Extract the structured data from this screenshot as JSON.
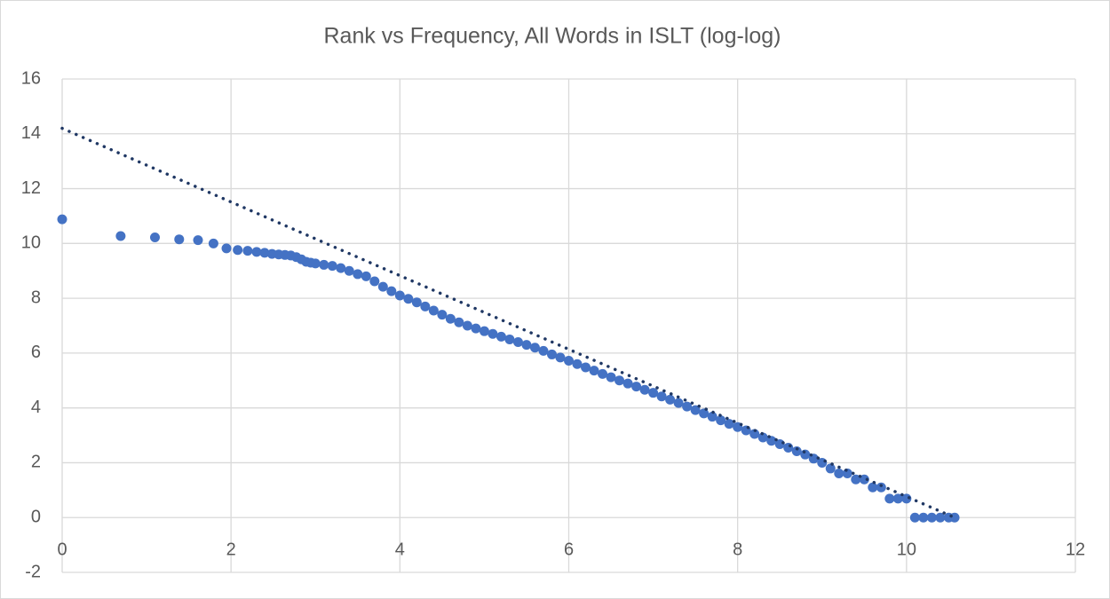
{
  "chart_data": {
    "type": "scatter",
    "title": "Rank vs Frequency, All Words in ISLT (log-log)",
    "series": [
      {
        "color": "#4472c4",
        "x": [
          0,
          0.693,
          1.099,
          1.386,
          1.609,
          1.792,
          1.946,
          2.079,
          2.197,
          2.303,
          2.398,
          2.485,
          2.565,
          2.639,
          2.708,
          2.773,
          2.833,
          2.89,
          2.944,
          3.0,
          3.1,
          3.2,
          3.3,
          3.4,
          3.5,
          3.6,
          3.7,
          3.8,
          3.9,
          4.0,
          4.1,
          4.2,
          4.3,
          4.4,
          4.5,
          4.6,
          4.7,
          4.8,
          4.9,
          5.0,
          5.1,
          5.2,
          5.3,
          5.4,
          5.5,
          5.6,
          5.7,
          5.8,
          5.9,
          6.0,
          6.1,
          6.2,
          6.3,
          6.4,
          6.5,
          6.6,
          6.7,
          6.8,
          6.9,
          7.0,
          7.1,
          7.2,
          7.3,
          7.4,
          7.5,
          7.6,
          7.7,
          7.8,
          7.9,
          8.0,
          8.1,
          8.2,
          8.3,
          8.4,
          8.5,
          8.6,
          8.7,
          8.8,
          8.9,
          9.0,
          9.1,
          9.2,
          9.3,
          9.4,
          9.5,
          9.6,
          9.7,
          9.8,
          9.9,
          10.0,
          10.1,
          10.2,
          10.3,
          10.4,
          10.5,
          10.57
        ],
        "y": [
          10.88,
          10.27,
          10.22,
          10.15,
          10.12,
          10.0,
          9.82,
          9.76,
          9.73,
          9.69,
          9.66,
          9.62,
          9.6,
          9.58,
          9.56,
          9.5,
          9.42,
          9.33,
          9.3,
          9.27,
          9.22,
          9.18,
          9.1,
          9.0,
          8.88,
          8.8,
          8.62,
          8.42,
          8.26,
          8.1,
          7.98,
          7.85,
          7.7,
          7.55,
          7.4,
          7.25,
          7.12,
          7.0,
          6.9,
          6.8,
          6.7,
          6.6,
          6.5,
          6.4,
          6.3,
          6.2,
          6.08,
          5.95,
          5.84,
          5.72,
          5.6,
          5.48,
          5.36,
          5.24,
          5.12,
          5.0,
          4.89,
          4.78,
          4.66,
          4.55,
          4.42,
          4.3,
          4.18,
          4.05,
          3.92,
          3.8,
          3.68,
          3.55,
          3.42,
          3.3,
          3.18,
          3.05,
          2.92,
          2.8,
          2.68,
          2.55,
          2.42,
          2.3,
          2.15,
          2.0,
          1.79,
          1.61,
          1.61,
          1.39,
          1.39,
          1.1,
          1.1,
          0.69,
          0.69,
          0.69,
          0,
          0,
          0,
          0,
          0,
          0
        ]
      }
    ],
    "trendline": {
      "color": "#203864",
      "x": [
        0,
        10.57
      ],
      "y": [
        14.2,
        0
      ]
    },
    "xlim": [
      0,
      12
    ],
    "xticks": [
      0,
      2,
      4,
      6,
      8,
      10,
      12
    ],
    "ylim": [
      -2,
      16
    ],
    "yticks": [
      -2,
      0,
      2,
      4,
      6,
      8,
      10,
      12,
      14,
      16
    ],
    "grid": true
  }
}
